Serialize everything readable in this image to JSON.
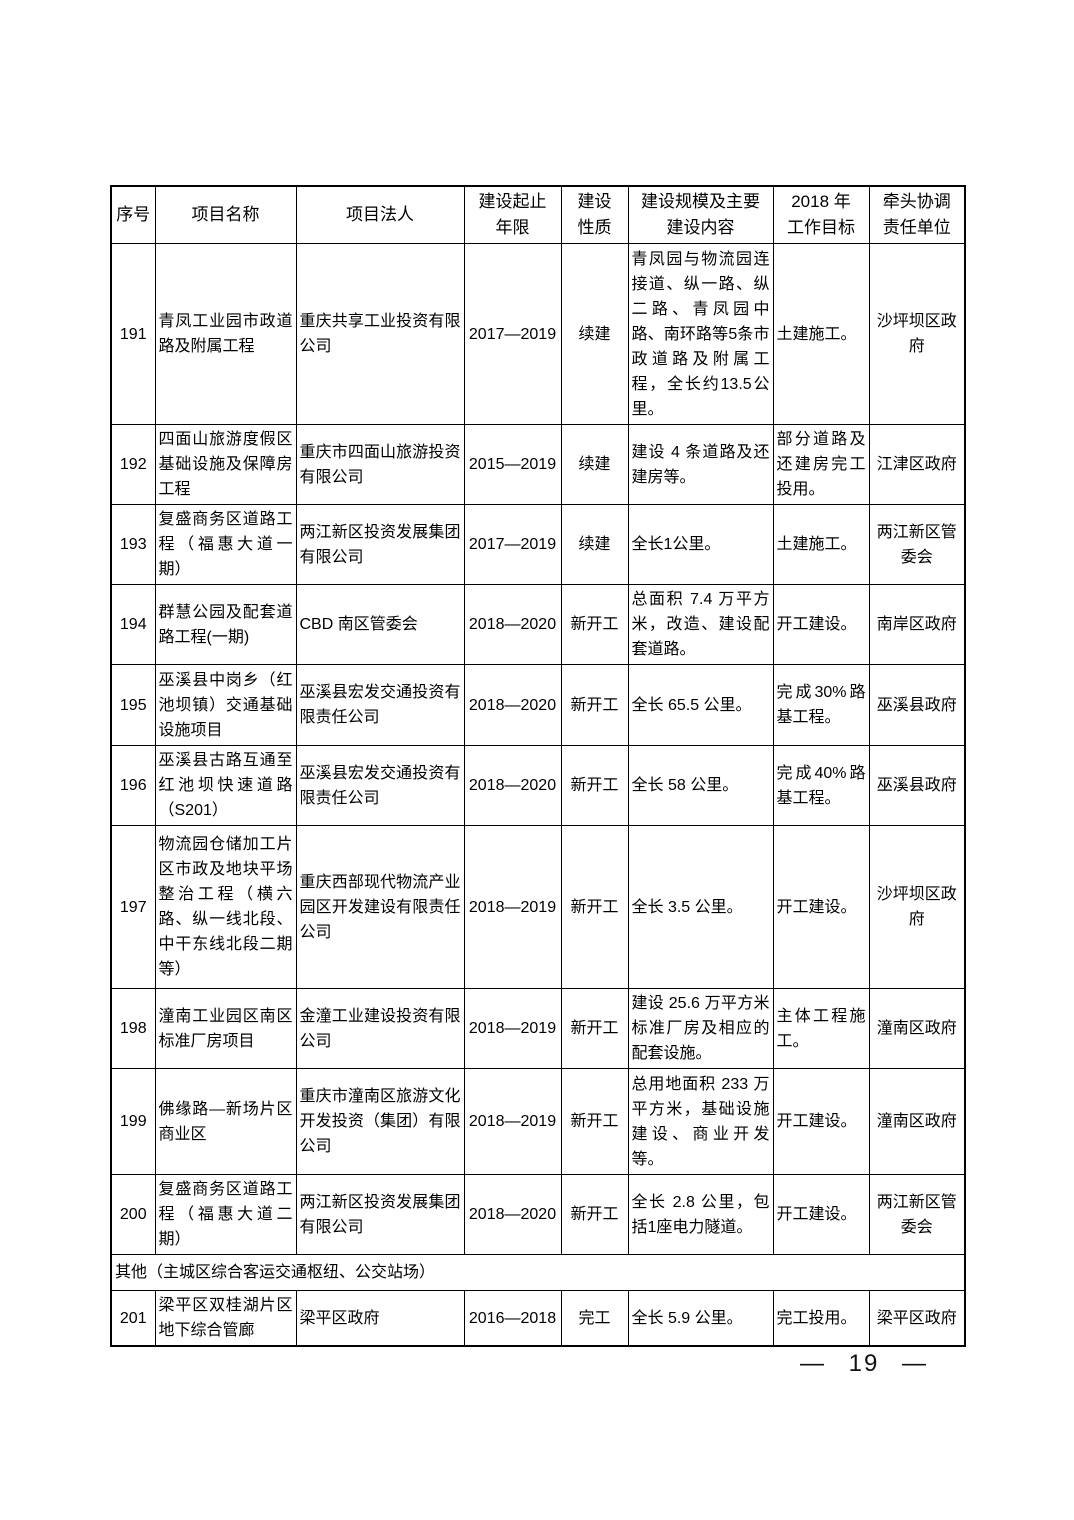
{
  "page": {
    "footer_page_number": "— 19 —"
  },
  "table": {
    "columns": [
      {
        "key": "no",
        "label": "序号"
      },
      {
        "key": "name",
        "label": "项目名称"
      },
      {
        "key": "legal",
        "label": "项目法人"
      },
      {
        "key": "years",
        "label": "建设起止\n年限"
      },
      {
        "key": "nature",
        "label": "建设\n性质"
      },
      {
        "key": "scale",
        "label": "建设规模及主要\n建设内容"
      },
      {
        "key": "target",
        "label": "2018 年\n工作目标"
      },
      {
        "key": "unit",
        "label": "牵头协调\n责任单位"
      }
    ],
    "rows": [
      {
        "id": "r191",
        "no": "191",
        "name": "青凤工业园市政道路及附属工程",
        "legal": "重庆共享工业投资有限公司",
        "years": "2017—2019",
        "nature": "续建",
        "scale": "青凤园与物流园连接道、纵一路、纵二路、青凤园中路、南环路等5条市政道路及附属工程，全长约13.5公里。",
        "target": "土建施工。",
        "unit": "沙坪坝区政府"
      },
      {
        "id": "r192",
        "no": "192",
        "name": "四面山旅游度假区基础设施及保障房工程",
        "legal": "重庆市四面山旅游投资有限公司",
        "years": "2015—2019",
        "nature": "续建",
        "scale": "建设 4 条道路及还建房等。",
        "target": "部分道路及还建房完工投用。",
        "unit": "江津区政府"
      },
      {
        "id": "r193",
        "no": "193",
        "name": "复盛商务区道路工程（福惠大道一期）",
        "legal": "两江新区投资发展集团有限公司",
        "years": "2017—2019",
        "nature": "续建",
        "scale": "全长1公里。",
        "target": "土建施工。",
        "unit": "两江新区管委会"
      },
      {
        "id": "r194",
        "no": "194",
        "name": "群慧公园及配套道路工程(一期)",
        "legal": "CBD 南区管委会",
        "years": "2018—2020",
        "nature": "新开工",
        "scale": "总面积 7.4 万平方米，改造、建设配套道路。",
        "target": "开工建设。",
        "unit": "南岸区政府"
      },
      {
        "id": "r195",
        "no": "195",
        "name": "巫溪县中岗乡（红池坝镇）交通基础设施项目",
        "legal": "巫溪县宏发交通投资有限责任公司",
        "years": "2018—2020",
        "nature": "新开工",
        "scale": "全长 65.5 公里。",
        "target": "完成30%路基工程。",
        "unit": "巫溪县政府"
      },
      {
        "id": "r196",
        "no": "196",
        "name": "巫溪县古路互通至红池坝快速道路（S201）",
        "legal": "巫溪县宏发交通投资有限责任公司",
        "years": "2018—2020",
        "nature": "新开工",
        "scale": "全长 58 公里。",
        "target": "完成40%路基工程。",
        "unit": "巫溪县政府"
      },
      {
        "id": "r197",
        "no": "197",
        "name": "物流园仓储加工片区市政及地块平场整治工程（横六路、纵一线北段、中干东线北段二期等）",
        "legal": "重庆西部现代物流产业园区开发建设有限责任公司",
        "years": "2018—2019",
        "nature": "新开工",
        "scale": "全长 3.5 公里。",
        "target": "开工建设。",
        "unit": "沙坪坝区政府"
      },
      {
        "id": "r198",
        "no": "198",
        "name": "潼南工业园区南区标准厂房项目",
        "legal": "金潼工业建设投资有限公司",
        "years": "2018—2019",
        "nature": "新开工",
        "scale": "建设 25.6 万平方米标准厂房及相应的配套设施。",
        "target": "主体工程施工。",
        "unit": "潼南区政府"
      },
      {
        "id": "r199",
        "no": "199",
        "name": "佛缘路—新场片区商业区",
        "legal": "重庆市潼南区旅游文化开发投资（集团）有限公司",
        "years": "2018—2019",
        "nature": "新开工",
        "scale": "总用地面积 233 万平方米，基础设施建设、商业开发等。",
        "target": "开工建设。",
        "unit": "潼南区政府"
      },
      {
        "id": "r200",
        "no": "200",
        "name": "复盛商务区道路工程（福惠大道二期）",
        "legal": "两江新区投资发展集团有限公司",
        "years": "2018—2020",
        "nature": "新开工",
        "scale": "全长 2.8 公里，包括1座电力隧道。",
        "target": "开工建设。",
        "unit": "两江新区管委会"
      },
      {
        "id": "sec-other",
        "section": "其他（主城区综合客运交通枢纽、公交站场）"
      },
      {
        "id": "r201",
        "no": "201",
        "name": "梁平区双桂湖片区地下综合管廊",
        "legal": "梁平区政府",
        "years": "2016—2018",
        "nature": "完工",
        "scale": "全长 5.9 公里。",
        "target": "完工投用。",
        "unit": "梁平区政府"
      }
    ]
  }
}
